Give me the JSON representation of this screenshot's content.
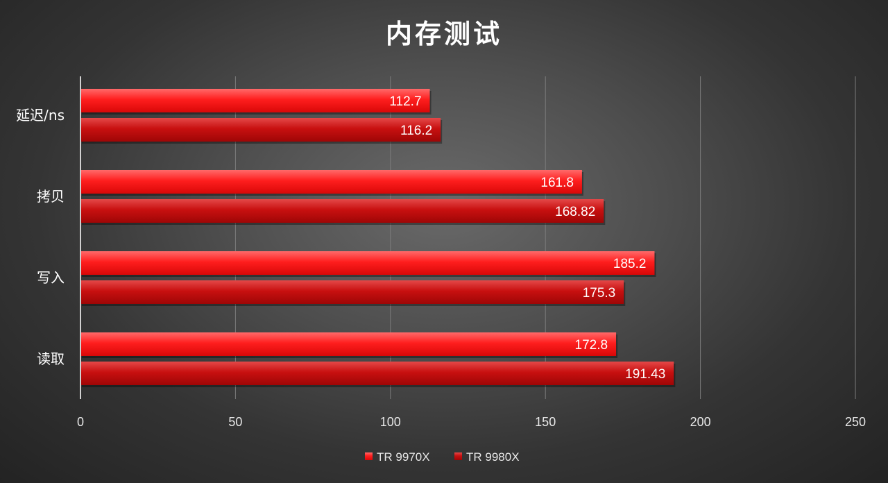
{
  "chart_data": {
    "type": "bar",
    "orientation": "horizontal",
    "title": "内存测试",
    "categories": [
      "延迟/ns",
      "拷贝",
      "写入",
      "读取"
    ],
    "series": [
      {
        "name": "TR 9970X",
        "values": [
          112.7,
          161.8,
          185.2,
          172.8
        ],
        "labels": [
          "112.7",
          "161.8",
          "185.2",
          "172.8"
        ],
        "color": "#ff1a1a"
      },
      {
        "name": "TR 9980X",
        "values": [
          116.2,
          168.82,
          175.3,
          191.43
        ],
        "labels": [
          "116.2",
          "168.82",
          "175.3",
          "191.43"
        ],
        "color": "#c80c0c"
      }
    ],
    "xlim": [
      0,
      250
    ],
    "xticks": [
      "0",
      "50",
      "100",
      "150",
      "200",
      "250"
    ],
    "grid": true,
    "legend_position": "bottom"
  }
}
